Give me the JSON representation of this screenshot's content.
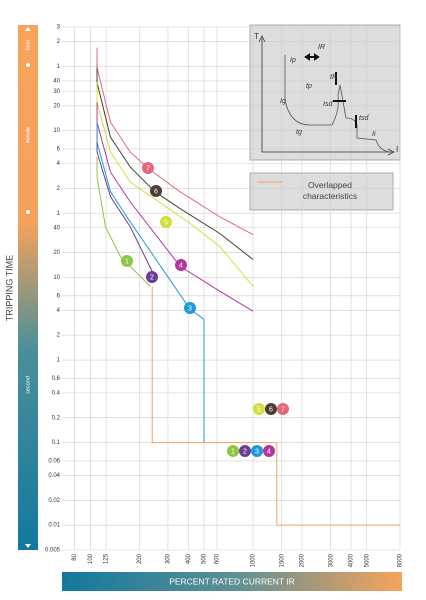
{
  "chart_data": {
    "type": "line",
    "y_axis_label": "TRIPPING TIME",
    "x_axis_label": "PERCENT RATED CURRENT IR",
    "time_units": [
      "hour",
      "minute",
      "second"
    ],
    "log_x": true,
    "log_y": true,
    "grid": true,
    "xlim": [
      67,
      8000
    ],
    "ylim": [
      0.005,
      10800
    ],
    "xticks": [
      80,
      100,
      125,
      200,
      300,
      400,
      500,
      600,
      1000,
      1500,
      2000,
      3000,
      4000,
      5000,
      8000
    ],
    "yticks": [
      {
        "value": 10800,
        "label": "3"
      },
      {
        "value": 7200,
        "label": "2"
      },
      {
        "value": 3600,
        "label": "1"
      },
      {
        "value": 2400,
        "label": "40"
      },
      {
        "value": 1800,
        "label": "30"
      },
      {
        "value": 1200,
        "label": "20"
      },
      {
        "value": 600,
        "label": "10"
      },
      {
        "value": 360,
        "label": "6"
      },
      {
        "value": 240,
        "label": "4"
      },
      {
        "value": 120,
        "label": "2"
      },
      {
        "value": 60,
        "label": "1"
      },
      40,
      20,
      10,
      6,
      4,
      2,
      1,
      0.6,
      0.4,
      0.2,
      0.1,
      0.06,
      0.04,
      0.02,
      0.01,
      0.005
    ],
    "series": [
      {
        "name": "1",
        "color": "#8dc63f",
        "x": [
          110,
          124,
          153,
          233
        ],
        "values": [
          165,
          41,
          18,
          7.8
        ]
      },
      {
        "name": "2",
        "color": "#6a3d96",
        "x": [
          110,
          133,
          176,
          240
        ],
        "values": [
          330,
          95,
          41,
          11.8
        ]
      },
      {
        "name": "3",
        "color": "#1e9ad6",
        "x": [
          110,
          133,
          176,
          411,
          500,
          500
        ],
        "values": [
          435,
          109,
          47,
          4.1,
          3.1,
          0.1
        ]
      },
      {
        "name": "4",
        "color": "#b5359e",
        "x": [
          110,
          133,
          176,
          357,
          627,
          1000
        ],
        "values": [
          758,
          189,
          82,
          13.6,
          6.8,
          3.9
        ]
      },
      {
        "name": "5",
        "color": "#d4de3a",
        "x": [
          110,
          133,
          176,
          411,
          627,
          1000
        ],
        "values": [
          1320,
          330,
          143,
          45,
          23.6,
          7.8
        ]
      },
      {
        "name": "6",
        "color": "#4a3b35",
        "x": [
          110,
          133,
          176,
          250,
          357,
          627,
          1000
        ],
        "values": [
          2300,
          500,
          217,
          109,
          68,
          34,
          16.5
        ]
      },
      {
        "name": "7",
        "color": "#e8657a",
        "x": [
          110,
          133,
          176,
          233,
          357,
          627,
          1000
        ],
        "values": [
          3480,
          758,
          330,
          200,
          109,
          54,
          33
        ]
      },
      {
        "name": "Overlapped characteristics",
        "color": "#f4a261",
        "x": [
          240,
          240,
          1000,
          1000,
          1400,
          1400,
          8000
        ],
        "values": [
          7.8,
          0.1,
          0.1,
          0.1,
          0.1,
          0.01,
          0.01
        ]
      }
    ],
    "inset": {
      "axis_y": "T",
      "axis_x": "I",
      "labels": [
        "IR",
        "tR",
        "Ip",
        "tp",
        "Ig",
        "tg",
        "Isd",
        "tsd",
        "Ii"
      ]
    }
  }
}
